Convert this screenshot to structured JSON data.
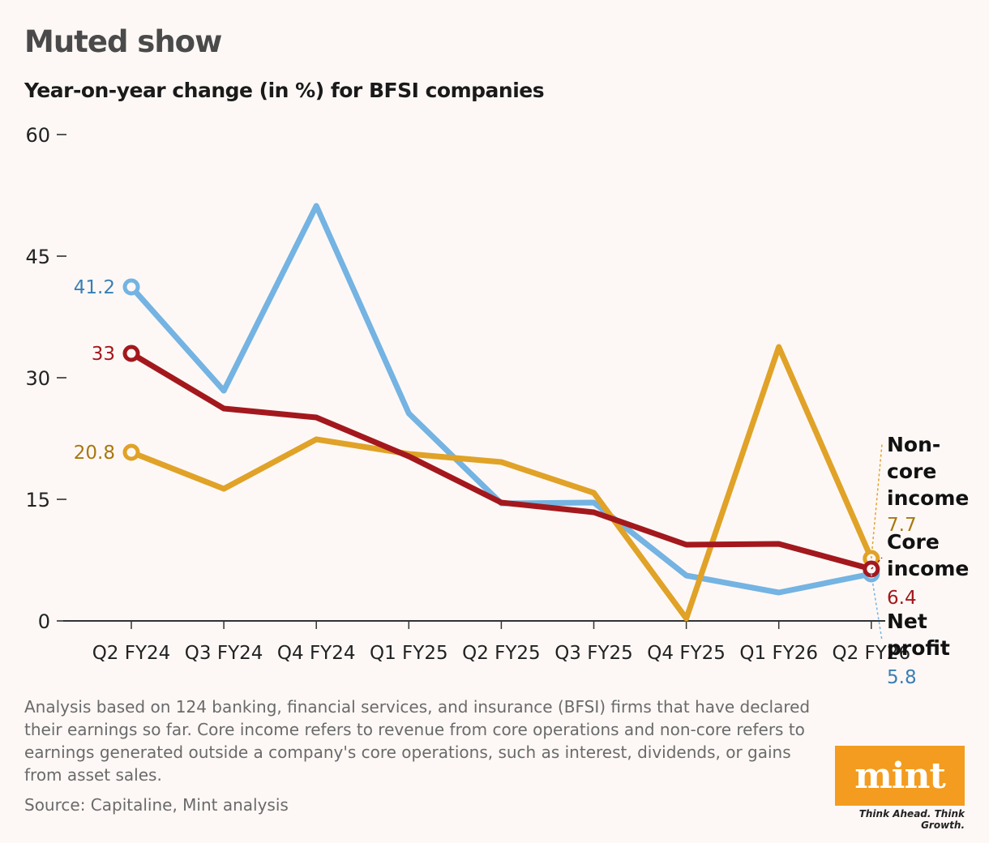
{
  "header": {
    "title": "Muted show",
    "subtitle": "Year-on-year change (in %) for BFSI companies"
  },
  "chart_data": {
    "type": "line",
    "title": "Muted show",
    "subtitle": "Year-on-year change (in %) for BFSI companies",
    "xlabel": "",
    "ylabel": "",
    "ylim": [
      0,
      60
    ],
    "yticks": [
      "0",
      "15",
      "30",
      "45",
      "60"
    ],
    "categories": [
      "Q2 FY24",
      "Q3 FY24",
      "Q4 FY24",
      "Q1 FY25",
      "Q2 FY25",
      "Q3 FY25",
      "Q4 FY25",
      "Q1 FY26",
      "Q2 FY26"
    ],
    "series": [
      {
        "name": "Net profit",
        "label_lines": [
          "Net",
          "profit"
        ],
        "color": "#74b3e2",
        "label_color": "#3a7fb5",
        "values": [
          41.2,
          28.4,
          51.2,
          25.6,
          14.5,
          14.6,
          5.6,
          3.5,
          5.8
        ],
        "start_label": "41.2",
        "end_label": "5.8"
      },
      {
        "name": "Core income",
        "label_lines": [
          "Core",
          "income"
        ],
        "color": "#a3181d",
        "label_color": "#a3181d",
        "values": [
          33,
          26.2,
          25.1,
          20.3,
          14.6,
          13.4,
          9.4,
          9.5,
          6.4
        ],
        "start_label": "33",
        "end_label": "6.4"
      },
      {
        "name": "Non-core income",
        "label_lines": [
          "Non-",
          "core",
          "income"
        ],
        "color": "#e0a227",
        "label_color": "#a8780f",
        "values": [
          20.8,
          16.3,
          22.4,
          20.6,
          19.6,
          15.8,
          0.3,
          33.8,
          7.7
        ],
        "start_label": "20.8",
        "end_label": "7.7"
      }
    ]
  },
  "footer": {
    "note": "Analysis based on 124 banking, financial services, and insurance (BFSI) firms that have declared their earnings so far. Core income refers to revenue from core operations and non-core refers to earnings generated outside a company's core operations, such as interest, dividends, or gains from asset sales.",
    "source": "Source: Capitaline, Mint analysis",
    "logo": "mint",
    "tagline": "Think Ahead. Think Growth."
  }
}
